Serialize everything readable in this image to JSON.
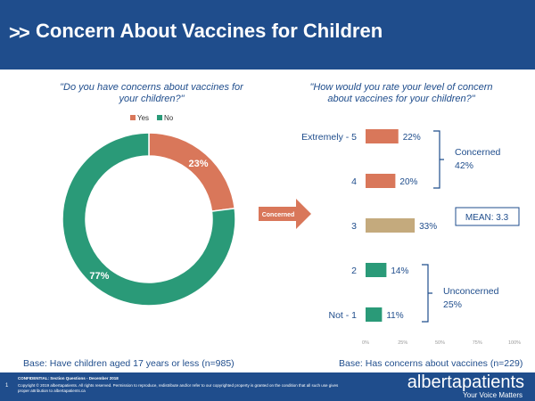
{
  "header": {
    "title": "Concern About Vaccines for Children"
  },
  "left": {
    "question": "\"Do you have concerns about vaccines for your children?\"",
    "base": "Base: Have children aged 17 years or less (n=985)"
  },
  "right": {
    "question": "\"How would you rate your level of concern about vaccines for your children?\"",
    "base": "Base: Has concerns about vaccines (n=229)"
  },
  "arrow_label": "Concerned",
  "mean_label": "MEAN: 3.3",
  "groups": [
    {
      "label": "Concerned",
      "value": "42%"
    },
    {
      "label": "Unconcerned",
      "value": "25%"
    }
  ],
  "colors": {
    "yes": "#d9775a",
    "no": "#2a9a78",
    "neutral": "#c4aa7d",
    "brand": "#1f4d8c"
  },
  "chart_data": [
    {
      "type": "pie",
      "style": "donut",
      "categories": [
        "Yes",
        "No"
      ],
      "values": [
        23,
        77
      ],
      "value_labels": [
        "23%",
        "77%"
      ],
      "legend": [
        "Yes",
        "No"
      ],
      "legend_position": "top"
    },
    {
      "type": "bar",
      "orientation": "horizontal",
      "categories": [
        "Extremely - 5",
        "4",
        "3",
        "2",
        "Not - 1"
      ],
      "values": [
        22,
        20,
        33,
        14,
        11
      ],
      "value_labels": [
        "22%",
        "20%",
        "33%",
        "14%",
        "11%"
      ],
      "xlim": [
        0,
        100
      ],
      "xticks": [
        "0%",
        "25%",
        "50%",
        "75%",
        "100%"
      ],
      "grid": false
    }
  ],
  "footer": {
    "page_number": "1",
    "confidential": "CONFIDENTIAL: Section Questions - December 2018",
    "copyright": "Copyright © 2019 albertapatients. All rights reserved. Permission to reproduce, redistribute and/or refer to our copyrighted property is granted on the condition that all such use gives proper attribution to albertapatients.ca",
    "brand": "albertapatients",
    "tagline": "Your Voice Matters"
  }
}
